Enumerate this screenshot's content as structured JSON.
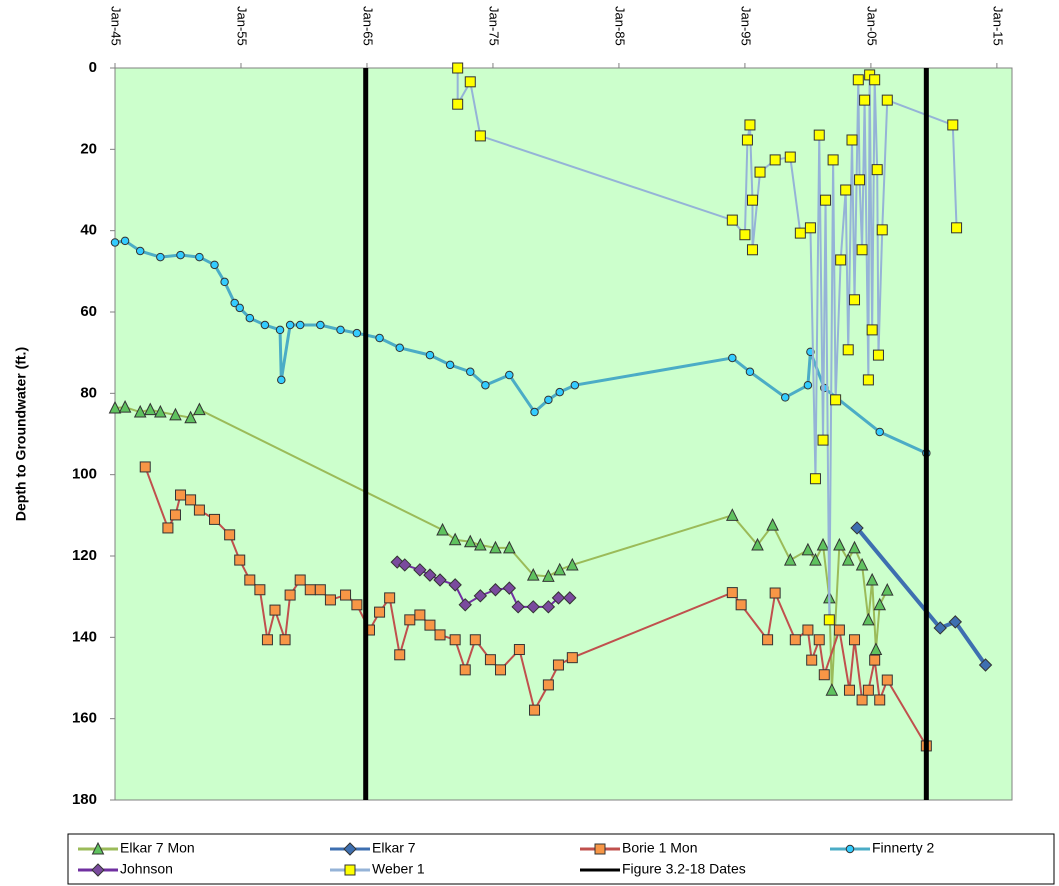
{
  "chart_data": {
    "type": "line",
    "y_label": "Depth to Groundwater (ft.)",
    "xlim": [
      1945,
      2016.2
    ],
    "ylim": [
      0,
      180
    ],
    "y_inverted": true,
    "xticks": [
      {
        "value": 1945,
        "label": "Jan-45"
      },
      {
        "value": 1955,
        "label": "Jan-55"
      },
      {
        "value": 1965,
        "label": "Jan-65"
      },
      {
        "value": 1975,
        "label": "Jan-75"
      },
      {
        "value": 1985,
        "label": "Jan-85"
      },
      {
        "value": 1995,
        "label": "Jan-95"
      },
      {
        "value": 2005,
        "label": "Jan-05"
      },
      {
        "value": 2015,
        "label": "Jan-15"
      }
    ],
    "yticks": [
      0,
      20,
      40,
      60,
      80,
      100,
      120,
      140,
      160,
      180
    ],
    "background": "#ccffcc",
    "series": [
      {
        "name": "Elkar 7 Mon",
        "color": "#9bbb59",
        "marker": "triangle",
        "marker_color": "#5fc25f",
        "x": [
          1945,
          1945.8,
          1947,
          1947.8,
          1948.6,
          1949.8,
          1951,
          1951.7,
          1971,
          1972,
          1973.2,
          1974,
          1975.2,
          1976.3,
          1978.2,
          1979.4,
          1980.3,
          1981.3,
          1994,
          1996,
          1997.2,
          1998.6,
          2000,
          2000.6,
          2001.2,
          2001.7,
          2001.9,
          2002.5,
          2003.2,
          2003.7,
          2004.3,
          2004.8,
          2005.1,
          2005.4,
          2005.7,
          2006.3
        ],
        "values": [
          83.6,
          83.4,
          84.6,
          84,
          84.6,
          85.3,
          86,
          84,
          113.6,
          116,
          116.5,
          117.3,
          118,
          118,
          124.7,
          125,
          123.4,
          122.2,
          110,
          117.3,
          112.4,
          121,
          118.5,
          121,
          117.3,
          130.3,
          153,
          117.3,
          121,
          118,
          122.2,
          135.7,
          125.9,
          143,
          132,
          128.4
        ]
      },
      {
        "name": "Elkar 7",
        "color": "#3e6fb0",
        "marker": "diamond",
        "marker_color": "#3e6fb0",
        "x": [
          2003.9,
          2010.5,
          2011.7,
          2014.1
        ],
        "values": [
          113.1,
          137.7,
          136.2,
          146.8
        ]
      },
      {
        "name": "Borie 1 Mon",
        "color": "#c0504d",
        "marker": "square",
        "marker_color": "#f79646",
        "x": [
          1947.4,
          1949.2,
          1949.8,
          1950.2,
          1951,
          1951.7,
          1952.9,
          1954.1,
          1954.9,
          1955.7,
          1956.5,
          1957.1,
          1957.7,
          1958.5,
          1958.9,
          1959.7,
          1960.5,
          1961.3,
          1962.1,
          1963.3,
          1964.2,
          1965.2,
          1966,
          1966.8,
          1967.6,
          1968.4,
          1969.2,
          1970,
          1970.8,
          1972,
          1972.8,
          1973.6,
          1974.8,
          1975.6,
          1977.1,
          1978.3,
          1979.4,
          1980.2,
          1981.3,
          1994,
          1994.7,
          1996.8,
          1997.4,
          1999,
          2000,
          2000.3,
          2000.9,
          2001.3,
          2002.5,
          2003.3,
          2003.7,
          2004.3,
          2004.8,
          2005.3,
          2005.7,
          2006.3,
          2009.4
        ],
        "values": [
          98.1,
          113.1,
          109.9,
          105,
          106.2,
          108.7,
          111,
          114.8,
          121,
          125.9,
          128.3,
          140.6,
          133.3,
          140.6,
          129.6,
          125.9,
          128.3,
          128.3,
          130.8,
          129.6,
          132,
          138.2,
          133.8,
          130.3,
          144.3,
          135.7,
          134.5,
          137,
          139.4,
          140.6,
          148,
          140.6,
          145.5,
          148,
          143,
          157.9,
          151.7,
          146.8,
          145,
          129,
          132,
          140.6,
          129.1,
          140.6,
          138.2,
          145.6,
          140.6,
          149.2,
          138.2,
          153,
          140.6,
          155.4,
          153,
          145.6,
          155.4,
          150.5,
          166.7
        ]
      },
      {
        "name": "Finnerty 2",
        "color": "#4bacc6",
        "marker": "circle",
        "marker_color": "#33ccff",
        "x": [
          1945,
          1945.8,
          1947,
          1948.6,
          1950.2,
          1951.7,
          1952.9,
          1953.7,
          1954.5,
          1954.9,
          1955.7,
          1956.9,
          1958.1,
          1958.2,
          1958.9,
          1959.7,
          1961.3,
          1962.9,
          1964.2,
          1966,
          1967.6,
          1970,
          1971.6,
          1973.2,
          1974.4,
          1976.3,
          1978.3,
          1979.4,
          1980.3,
          1981.5,
          1994,
          1995.4,
          1998.2,
          2000,
          2000.2,
          2001.3,
          2005.7,
          2009.4
        ],
        "values": [
          42.9,
          42.5,
          45,
          46.5,
          46,
          46.5,
          48.4,
          52.6,
          57.8,
          59,
          61.5,
          63.2,
          64.4,
          76.7,
          63.2,
          63.2,
          63.2,
          64.4,
          65.2,
          66.4,
          68.8,
          70.6,
          73,
          74.7,
          78,
          75.5,
          84.6,
          81.6,
          79.7,
          78,
          71.3,
          74.7,
          81,
          78,
          69.8,
          78.7,
          89.5,
          94.7
        ]
      },
      {
        "name": "Johnson",
        "color": "#7030a0",
        "marker": "diamond",
        "marker_color": "#7a4a9e",
        "x": [
          1967.4,
          1968,
          1969.2,
          1970,
          1970.8,
          1972,
          1972.8,
          1974,
          1975.2,
          1976.3,
          1977,
          1978.2,
          1979.4,
          1980.2,
          1981.1
        ],
        "values": [
          121.5,
          122.2,
          123.4,
          124.7,
          125.9,
          127.1,
          132,
          129.8,
          128.3,
          127.9,
          132.5,
          132.5,
          132.5,
          130.3,
          130.3
        ]
      },
      {
        "name": "Weber 1",
        "color": "#95b3d7",
        "marker": "square",
        "marker_color": "#ffff00",
        "x": [
          1972.2,
          1972.2,
          1973.2,
          1974,
          1994,
          1995,
          1995.2,
          1995.4,
          1995.6,
          1995.6,
          1996.2,
          1997.4,
          1998.6,
          1999.4,
          2000.2,
          2000.6,
          2000.9,
          2001.2,
          2001.4,
          2001.7,
          2002,
          2002.2,
          2002.6,
          2003,
          2003.2,
          2003.5,
          2003.7,
          2004,
          2004.1,
          2004.3,
          2004.5,
          2004.8,
          2004.9,
          2005.1,
          2005.3,
          2005.5,
          2005.6,
          2005.9,
          2006.3,
          2011.5,
          2011.8
        ],
        "values": [
          0,
          8.9,
          3.4,
          16.7,
          37.4,
          41,
          17.7,
          14,
          32.5,
          44.7,
          25.6,
          22.6,
          21.9,
          40.6,
          39.3,
          101,
          16.5,
          91.5,
          32.5,
          135.7,
          22.6,
          81.6,
          47.2,
          30,
          69.3,
          17.7,
          57,
          2.9,
          27.5,
          44.7,
          7.9,
          76.7,
          1.7,
          64.4,
          2.9,
          25,
          70.6,
          39.8,
          7.9,
          14,
          39.3
        ]
      },
      {
        "name": "Figure 3.2-18 Dates",
        "color": "#000000",
        "kind": "vline",
        "x": [
          1964.9,
          2009.4
        ]
      }
    ]
  }
}
